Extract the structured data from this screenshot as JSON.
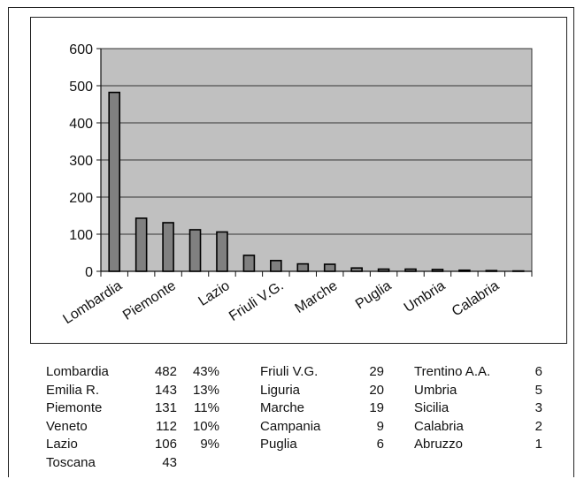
{
  "chart_data": {
    "type": "bar",
    "categories": [
      "Lombardia",
      "Emilia R.",
      "Piemonte",
      "Veneto",
      "Lazio",
      "Toscana",
      "Friuli V.G.",
      "Liguria",
      "Marche",
      "Campania",
      "Puglia",
      "Trentino A.A.",
      "Umbria",
      "Sicilia",
      "Calabria",
      "Abruzzo"
    ],
    "values": [
      482,
      143,
      131,
      112,
      106,
      43,
      29,
      20,
      19,
      9,
      6,
      6,
      5,
      3,
      2,
      1
    ],
    "ylim": [
      0,
      600
    ],
    "yticks": [
      0,
      100,
      200,
      300,
      400,
      500,
      600
    ],
    "xtick_labels": [
      "Lombardia",
      "Piemonte",
      "Lazio",
      "Friuli V.G.",
      "Marche",
      "Puglia",
      "Umbria",
      "Calabria"
    ],
    "grid": "horizontal",
    "legend": "none",
    "colors": {
      "plot_bg": "#c0c0c0",
      "bar": "#808080",
      "bar_edge": "#000000"
    }
  },
  "table": {
    "col1": [
      {
        "region": "Lombardia",
        "count": "482",
        "pct": "43%"
      },
      {
        "region": "Emilia R.",
        "count": "143",
        "pct": "13%"
      },
      {
        "region": "Piemonte",
        "count": "131",
        "pct": "11%"
      },
      {
        "region": "Veneto",
        "count": "112",
        "pct": "10%"
      },
      {
        "region": "Lazio",
        "count": "106",
        "pct": "9%"
      },
      {
        "region": "Toscana",
        "count": "43",
        "pct": ""
      }
    ],
    "col2": [
      {
        "region": "Friuli V.G.",
        "count": "29"
      },
      {
        "region": "Liguria",
        "count": "20"
      },
      {
        "region": "Marche",
        "count": "19"
      },
      {
        "region": "Campania",
        "count": "9"
      },
      {
        "region": "Puglia",
        "count": "6"
      }
    ],
    "col3": [
      {
        "region": "Trentino A.A.",
        "count": "6"
      },
      {
        "region": "Umbria",
        "count": "5"
      },
      {
        "region": "Sicilia",
        "count": "3"
      },
      {
        "region": "Calabria",
        "count": "2"
      },
      {
        "region": "Abruzzo",
        "count": "1"
      }
    ]
  }
}
